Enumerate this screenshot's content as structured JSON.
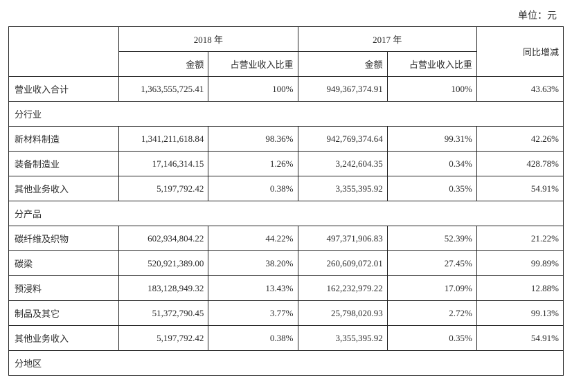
{
  "unit_label": "单位：元",
  "header": {
    "year2018": "2018 年",
    "year2017": "2017 年",
    "amount": "金额",
    "pct": "占营业收入比重",
    "change": "同比增减"
  },
  "total_row": {
    "label": "营业收入合计",
    "amount2018": "1,363,555,725.41",
    "pct2018": "100%",
    "amount2017": "949,367,374.91",
    "pct2017": "100%",
    "change": "43.63%"
  },
  "sections": {
    "by_industry": "分行业",
    "by_product": "分产品",
    "by_region": "分地区"
  },
  "industry_rows": [
    {
      "label": "新材料制造",
      "a18": "1,341,211,618.84",
      "p18": "98.36%",
      "a17": "942,769,374.64",
      "p17": "99.31%",
      "chg": "42.26%"
    },
    {
      "label": "装备制造业",
      "a18": "17,146,314.15",
      "p18": "1.26%",
      "a17": "3,242,604.35",
      "p17": "0.34%",
      "chg": "428.78%"
    },
    {
      "label": "其他业务收入",
      "a18": "5,197,792.42",
      "p18": "0.38%",
      "a17": "3,355,395.92",
      "p17": "0.35%",
      "chg": "54.91%"
    }
  ],
  "product_rows": [
    {
      "label": "碳纤维及织物",
      "a18": "602,934,804.22",
      "p18": "44.22%",
      "a17": "497,371,906.83",
      "p17": "52.39%",
      "chg": "21.22%"
    },
    {
      "label": "碳梁",
      "a18": "520,921,389.00",
      "p18": "38.20%",
      "a17": "260,609,072.01",
      "p17": "27.45%",
      "chg": "99.89%"
    },
    {
      "label": "预浸料",
      "a18": "183,128,949.32",
      "p18": "13.43%",
      "a17": "162,232,979.22",
      "p17": "17.09%",
      "chg": "12.88%"
    },
    {
      "label": "制品及其它",
      "a18": "51,372,790.45",
      "p18": "3.77%",
      "a17": "25,798,020.93",
      "p17": "2.72%",
      "chg": "99.13%"
    },
    {
      "label": "其他业务收入",
      "a18": "5,197,792.42",
      "p18": "0.38%",
      "a17": "3,355,395.92",
      "p17": "0.35%",
      "chg": "54.91%"
    }
  ]
}
